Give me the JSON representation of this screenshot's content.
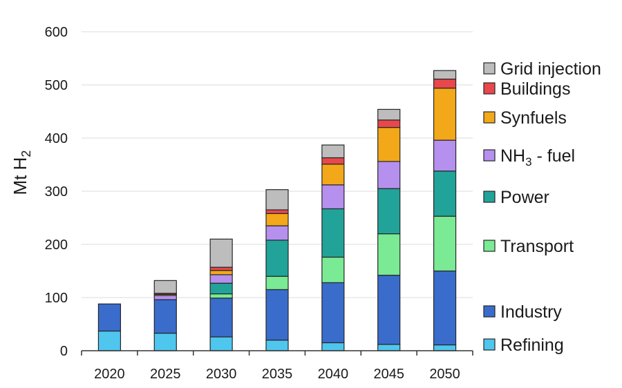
{
  "chart_data": {
    "type": "bar",
    "stacked": true,
    "categories": [
      "2020",
      "2025",
      "2030",
      "2035",
      "2040",
      "2045",
      "2050"
    ],
    "ylabel": "Mt H",
    "ylabel_subscript": "2",
    "ylim": [
      0,
      600
    ],
    "yticks": [
      "0",
      "100",
      "200",
      "300",
      "400",
      "500",
      "600"
    ],
    "grid": true,
    "legend_position": "right",
    "series": [
      {
        "name": "Refining",
        "color": "#4fc6ee",
        "values": [
          37,
          33,
          26,
          20,
          15,
          12,
          11
        ]
      },
      {
        "name": "Industry",
        "color": "#3a6ccc",
        "values": [
          51,
          63,
          73,
          95,
          113,
          130,
          139
        ]
      },
      {
        "name": "Transport",
        "color": "#7aea94",
        "values": [
          0,
          0,
          8,
          25,
          48,
          78,
          103
        ]
      },
      {
        "name": "Power",
        "color": "#21a39a",
        "values": [
          0,
          0,
          20,
          68,
          91,
          85,
          85
        ]
      },
      {
        "name": "NH",
        "name_subscript": "3",
        "name_suffix": " - fuel",
        "color": "#b690ee",
        "values": [
          0,
          8,
          16,
          27,
          45,
          51,
          58
        ]
      },
      {
        "name": "Synfuels",
        "color": "#f2a818",
        "values": [
          0,
          2,
          8,
          23,
          39,
          64,
          98
        ]
      },
      {
        "name": "Buildings",
        "color": "#e8474c",
        "values": [
          0,
          2,
          6,
          7,
          12,
          14,
          17
        ]
      },
      {
        "name": "Grid injection",
        "color": "#bdbdbd",
        "values": [
          0,
          24,
          53,
          38,
          24,
          20,
          16
        ]
      }
    ]
  }
}
